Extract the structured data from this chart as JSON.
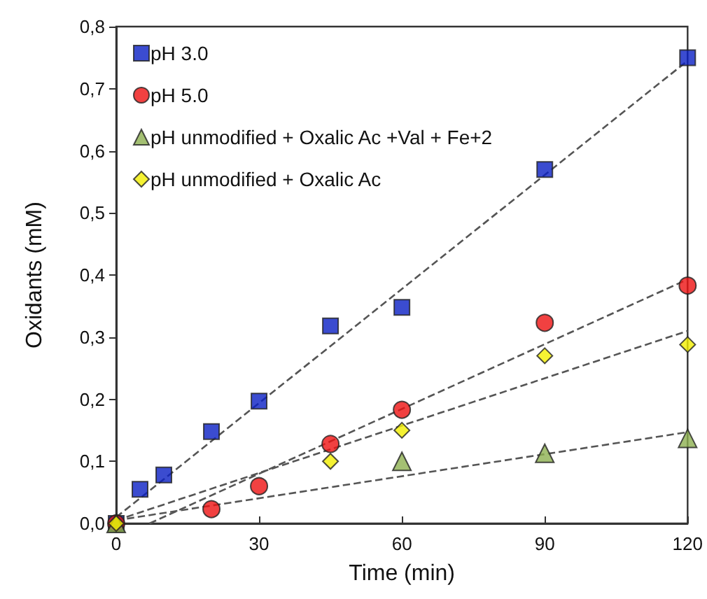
{
  "chart_data": {
    "type": "scatter",
    "xlabel": "Time (min)",
    "ylabel": "Oxidants (mM)",
    "xlim": [
      0,
      120
    ],
    "xticks": [
      0,
      30,
      60,
      90,
      120
    ],
    "ylim": [
      0,
      0.8
    ],
    "yticks": [
      {
        "value": 0,
        "label": "0,0"
      },
      {
        "value": 0.1,
        "label": "0,1"
      },
      {
        "value": 0.2,
        "label": "0,2"
      },
      {
        "value": 0.3,
        "label": "0,3"
      },
      {
        "value": 0.4,
        "label": "0,4"
      },
      {
        "value": 0.5,
        "label": "0,5"
      },
      {
        "value": 0.6,
        "label": "0,6"
      },
      {
        "value": 0.7,
        "label": "0,7"
      },
      {
        "value": 0.8,
        "label": "0,8"
      }
    ],
    "grid": false,
    "legend": "top left",
    "series": [
      {
        "type": "line",
        "color": "#555555",
        "line_style": "dashed",
        "marker": "none",
        "x": [
          0,
          120
        ],
        "values": [
          0.01,
          0.745
        ]
      },
      {
        "type": "line",
        "color": "#555555",
        "line_style": "dashed",
        "marker": "none",
        "x": [
          7,
          120
        ],
        "values": [
          0,
          0.393
        ]
      },
      {
        "type": "line",
        "color": "#555555",
        "line_style": "dashed",
        "marker": "none",
        "x": [
          0,
          120
        ],
        "values": [
          0.005,
          0.31
        ]
      },
      {
        "type": "line",
        "color": "#555555",
        "line_style": "dashed",
        "marker": "none",
        "x": [
          0,
          120
        ],
        "values": [
          0.005,
          0.147
        ]
      },
      {
        "name": "pH 3.0",
        "color": "#0a1fc4",
        "marker": "square",
        "x": [
          0,
          5,
          10,
          20,
          30,
          45,
          60,
          90,
          120
        ],
        "values": [
          0,
          0.055,
          0.078,
          0.148,
          0.197,
          0.318,
          0.348,
          0.57,
          0.75
        ]
      },
      {
        "name": "pH 5.0",
        "color": "#ee1111",
        "marker": "circle",
        "x": [
          0,
          20,
          30,
          45,
          60,
          90,
          120
        ],
        "values": [
          0,
          0.023,
          0.06,
          0.128,
          0.183,
          0.323,
          0.383
        ]
      },
      {
        "name": "pH unmodified + Oxalic Ac +Val + Fe+2",
        "color": "#8db050",
        "marker": "triangle",
        "x": [
          0,
          60,
          90,
          120
        ],
        "values": [
          0,
          0.1,
          0.113,
          0.137
        ]
      },
      {
        "name": "pH unmodified + Oxalic Ac",
        "color": "#f2ef00",
        "marker": "diamond",
        "x": [
          0,
          45,
          60,
          90,
          120
        ],
        "values": [
          0,
          0.1,
          0.15,
          0.27,
          0.288
        ]
      }
    ]
  }
}
